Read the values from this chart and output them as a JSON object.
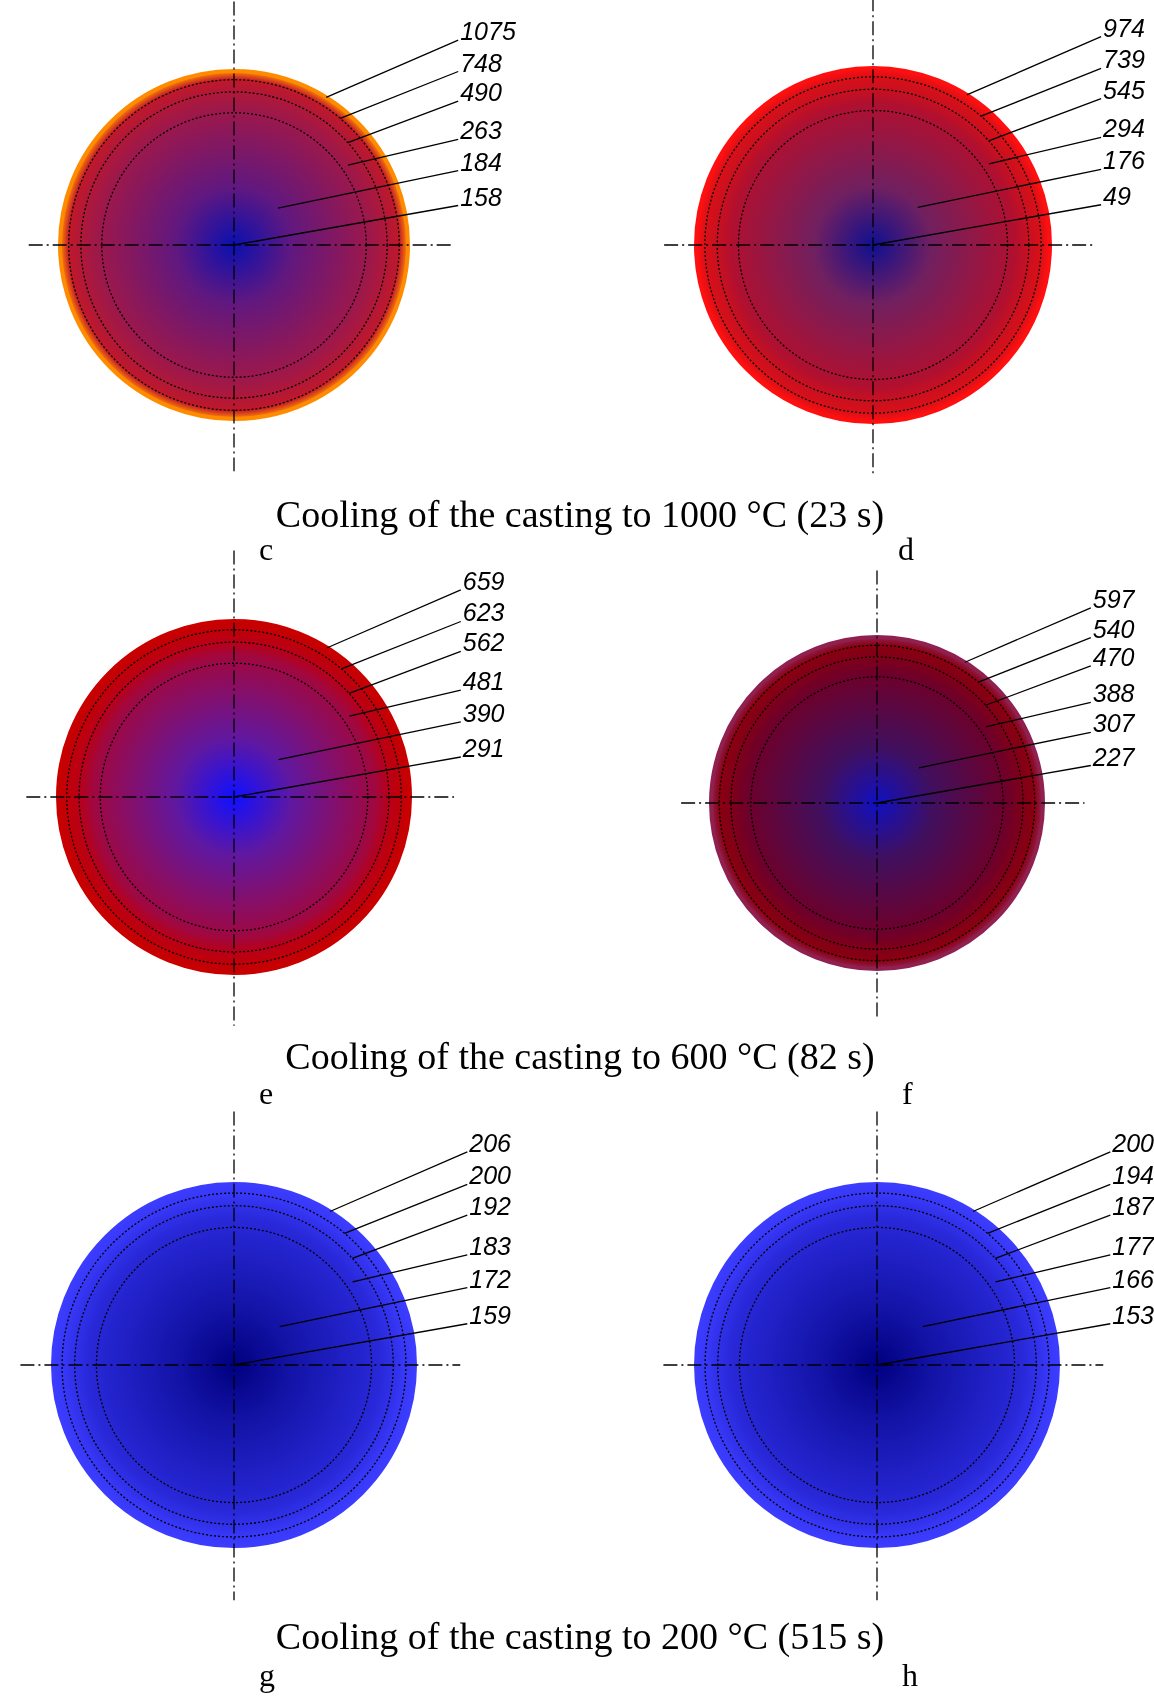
{
  "chart_data": [
    {
      "type": "other",
      "xlabel": "c",
      "annotations": [
        "Cooling of the casting to 1000 °C (23 s)"
      ],
      "values": [
        1075,
        748,
        490,
        263,
        184,
        158
      ],
      "data_labels": true,
      "colors": [
        "#ff8c00",
        "#c0182a",
        "#b01838",
        "#a01848",
        "#601880",
        "#0a10b0"
      ]
    },
    {
      "type": "other",
      "xlabel": "d",
      "values": [
        974,
        739,
        545,
        294,
        176,
        49
      ],
      "data_labels": true,
      "colors": [
        "#ff1010",
        "#d81018",
        "#c81020",
        "#b01030",
        "#702060",
        "#101090"
      ]
    },
    {
      "type": "other",
      "xlabel": "e",
      "annotations": [
        "Cooling of the casting to 600 °C (82 s)"
      ],
      "values": [
        659,
        623,
        562,
        481,
        390,
        291
      ],
      "data_labels": true,
      "colors": [
        "#c80000",
        "#c00008",
        "#b80018",
        "#a00840",
        "#6018a0",
        "#1010ff"
      ]
    },
    {
      "type": "other",
      "xlabel": "f",
      "values": [
        597,
        540,
        470,
        388,
        307,
        227
      ],
      "data_labels": true,
      "colors": [
        "#902050",
        "#8a0010",
        "#800018",
        "#700028",
        "#401060",
        "#1010c0"
      ]
    },
    {
      "type": "other",
      "xlabel": "g",
      "annotations": [
        "Cooling of the casting to 200 °C (515 s)"
      ],
      "values": [
        206,
        200,
        192,
        183,
        172,
        159
      ],
      "data_labels": true,
      "colors": [
        "#3c3cff",
        "#3838f8",
        "#3030e8",
        "#2828d8",
        "#1414a8",
        "#000080"
      ]
    },
    {
      "type": "other",
      "xlabel": "h",
      "values": [
        200,
        194,
        187,
        177,
        166,
        153
      ],
      "data_labels": true,
      "colors": [
        "#3c3cff",
        "#3838f8",
        "#3030e8",
        "#2828d8",
        "#1414a8",
        "#000080"
      ]
    }
  ]
}
